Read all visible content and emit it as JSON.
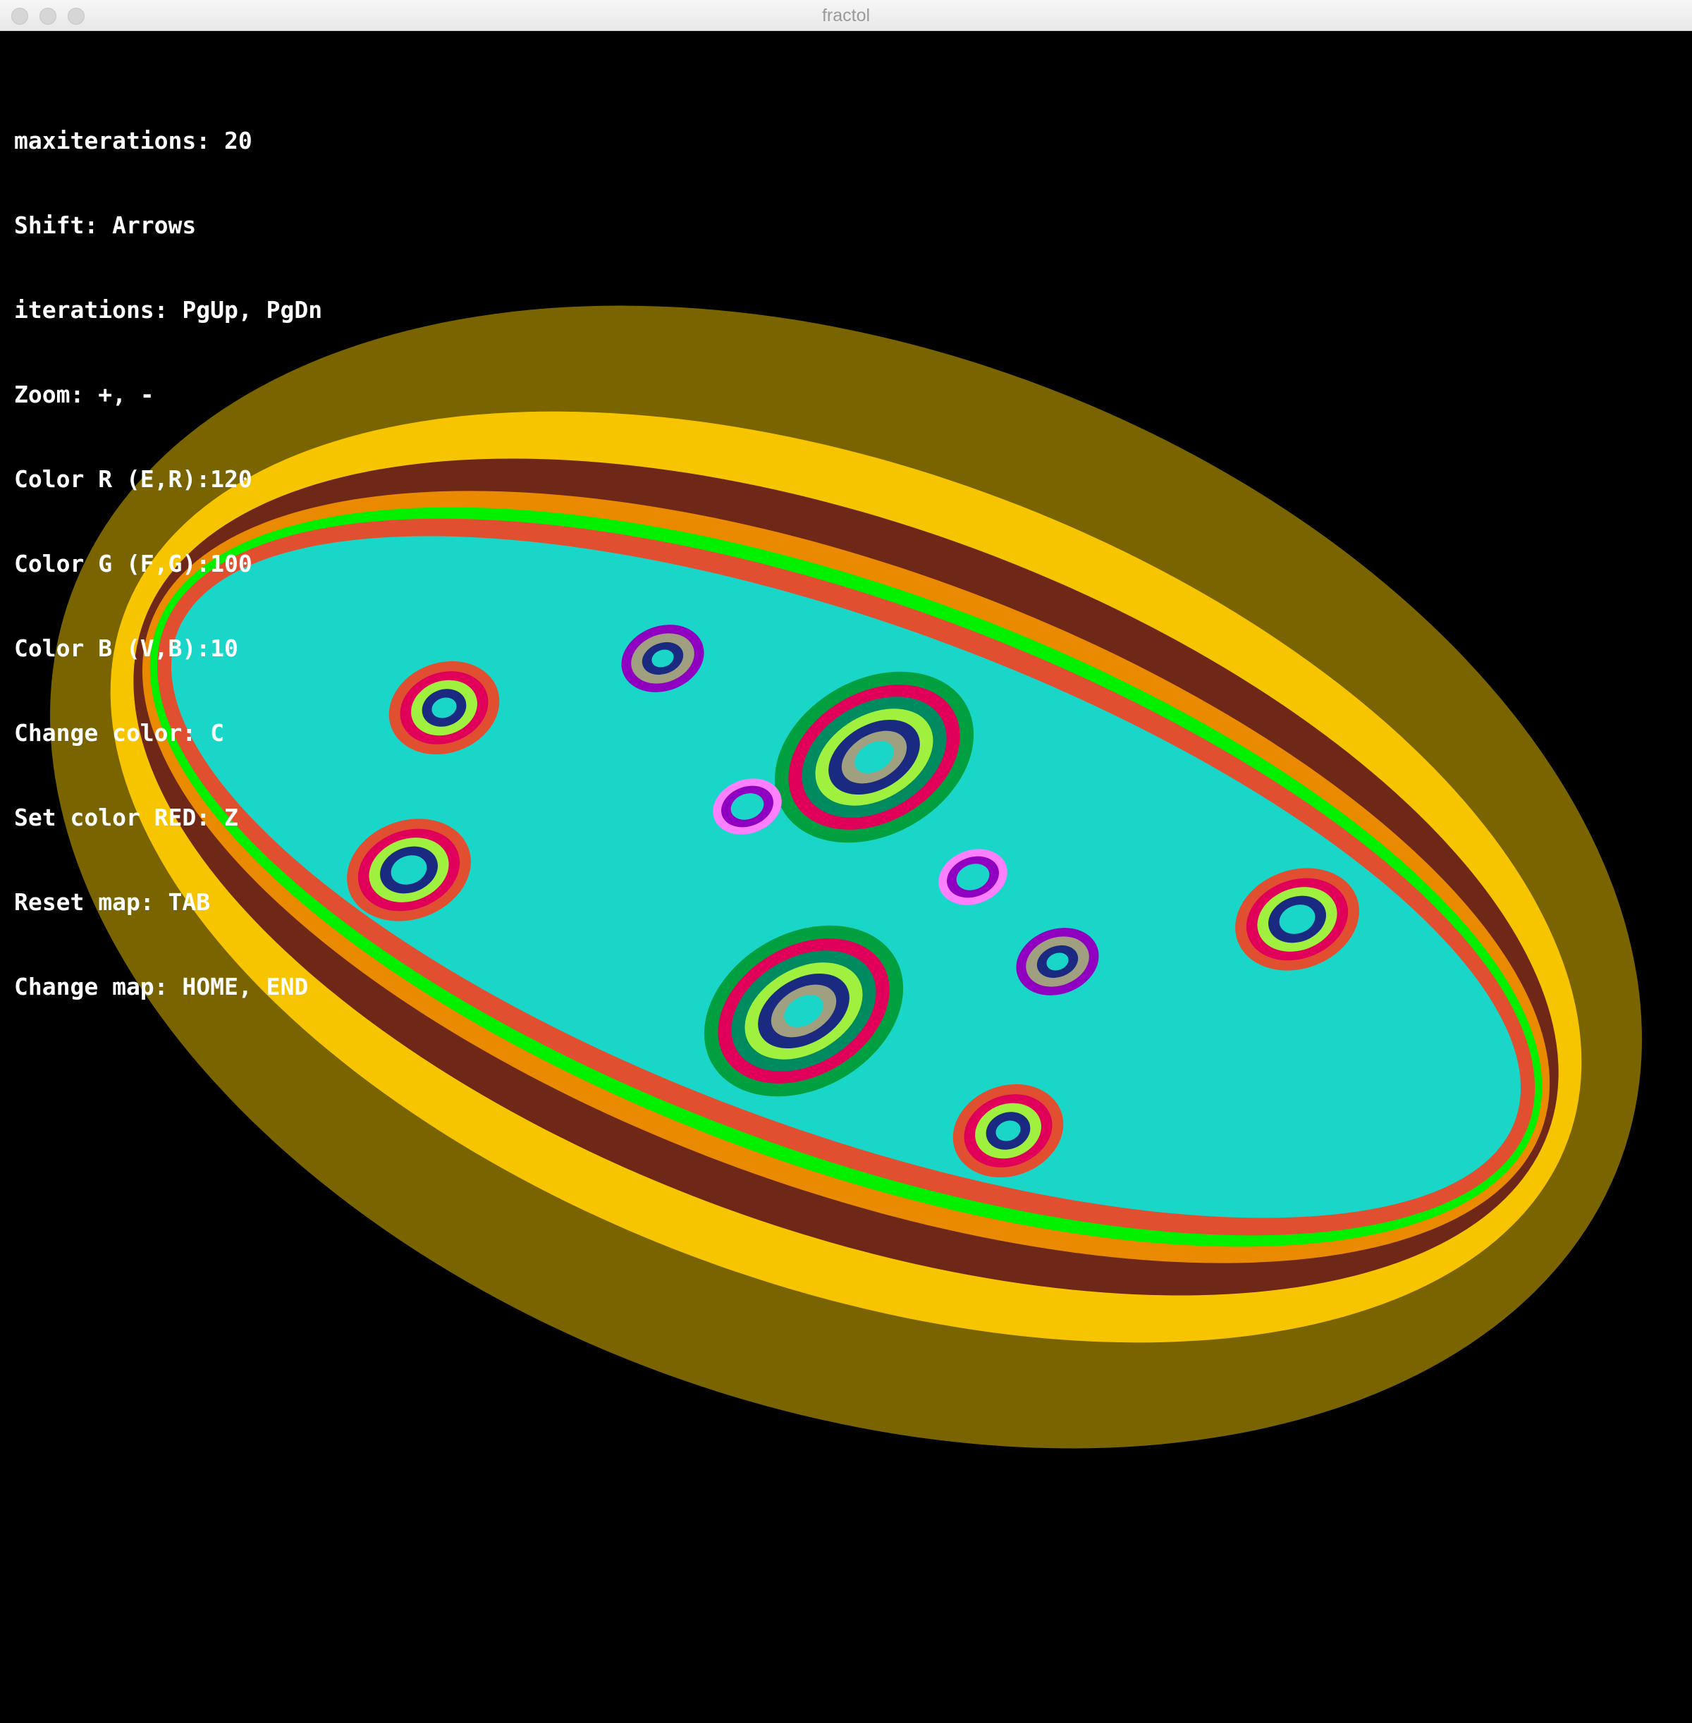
{
  "window": {
    "title": "fractol"
  },
  "hud": {
    "lines": [
      "maxiterations: 20",
      "Shift: Arrows",
      "iterations: PgUp, PgDn",
      "Zoom: +, -",
      "Color R (E,R):120",
      "Color G (F,G):100",
      "Color B (V,B):10",
      "Change color: C",
      "Set color RED: Z",
      "Reset map: TAB",
      "Change map: HOME, END"
    ]
  },
  "fractal": {
    "type": "julia",
    "palette": {
      "background": "#000000",
      "band_outer": "#7a6400",
      "band_yellow": "#f7c500",
      "band_brown": "#6f2817",
      "band_orange": "#ea8a00",
      "band_green": "#00f000",
      "band_red": "#e05030",
      "band_crimson": "#e0005a",
      "band_darkgreen": "#00a040",
      "band_teal": "#008a60",
      "band_lime": "#a0f040",
      "band_navy": "#1a2a80",
      "band_khaki": "#a0a080",
      "band_purple": "#9000c0",
      "band_pink": "#ff80ff",
      "interior": "#19d6c8"
    }
  }
}
